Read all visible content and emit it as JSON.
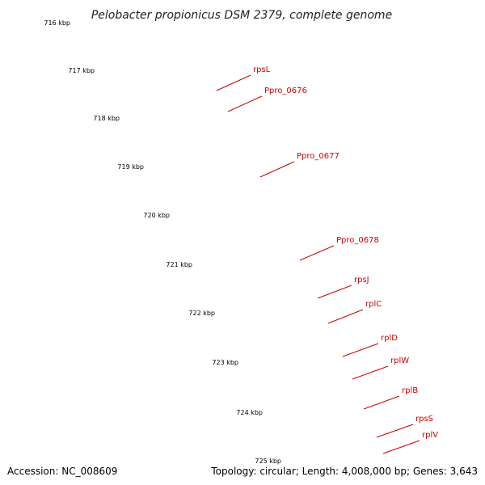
{
  "title": "Pelobacter propionicus DSM 2379, complete genome",
  "footer": {
    "accession": "Accession: NC_008609",
    "summary": "Topology: circular; Length: 4,008,000 bp; Genes: 3,643"
  },
  "ticks": [
    "716 kbp",
    "717 kbp",
    "718 kbp",
    "719 kbp",
    "720 kbp",
    "721 kbp",
    "722 kbp",
    "723 kbp",
    "724 kbp",
    "725 kbp"
  ],
  "genes": [
    "rpsL",
    "Ppro_0676",
    "Ppro_0677",
    "Ppro_0678",
    "rpsJ",
    "rplC",
    "rplD",
    "rplW",
    "rplB",
    "rpsS",
    "rplV"
  ],
  "colors": {
    "cds_forward": "#ff0000",
    "cds_feature": "#f08080",
    "rna": "#ff9900",
    "backbone": "#888888",
    "gc_skew": "#007700",
    "label": "#cc0000"
  }
}
